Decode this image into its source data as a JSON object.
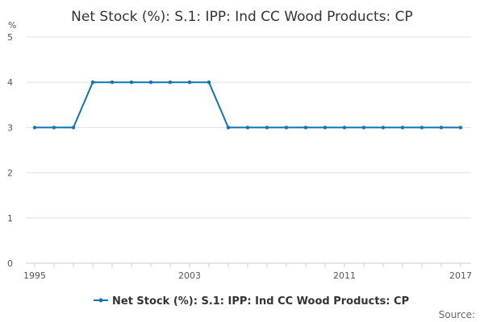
{
  "chart_data": {
    "type": "line",
    "title": "Net Stock (%): S.1: IPP: Ind CC Wood Products: CP",
    "ylabel": "%",
    "xlabel": "",
    "ylim": [
      0,
      5
    ],
    "y_ticks": [
      0,
      1,
      2,
      3,
      4,
      5
    ],
    "x_range": [
      1995,
      2017
    ],
    "x_tick_labels": [
      "1995",
      "2003",
      "2011",
      "2017"
    ],
    "grid": "horizontal",
    "legend_position": "bottom",
    "series": [
      {
        "name": "Net Stock (%): S.1: IPP: Ind CC Wood Products: CP",
        "color": "#0e75b0",
        "x": [
          1995,
          1996,
          1997,
          1998,
          1999,
          2000,
          2001,
          2002,
          2003,
          2004,
          2005,
          2006,
          2007,
          2008,
          2009,
          2010,
          2011,
          2012,
          2013,
          2014,
          2015,
          2016,
          2017
        ],
        "values": [
          3,
          3,
          3,
          4,
          4,
          4,
          4,
          4,
          4,
          4,
          3,
          3,
          3,
          3,
          3,
          3,
          3,
          3,
          3,
          3,
          3,
          3,
          3
        ]
      }
    ]
  },
  "source_label": "Source:"
}
